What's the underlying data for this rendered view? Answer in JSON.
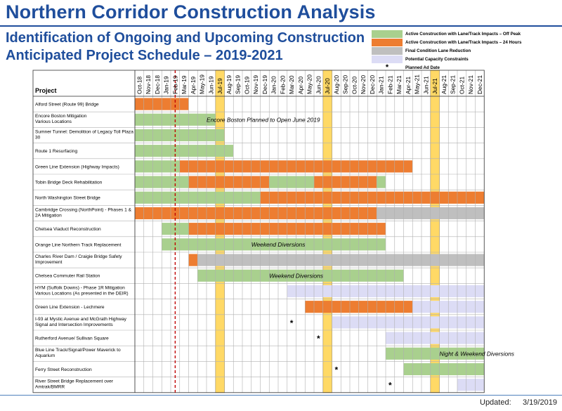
{
  "header": {
    "title": "Northern Corridor Construction Analysis",
    "subtitle_line1": "Identification of Ongoing and Upcoming Construction",
    "subtitle_line2": "Anticipated Project Schedule – 2019-2021"
  },
  "legend": [
    {
      "label": "Active Construction with Lane/Track Impacts – Off Peak",
      "color": "#a9d08e",
      "kind": "swatch"
    },
    {
      "label": "Active Construction with Lane/Track Impacts – 24 Hours",
      "color": "#ed7d31",
      "kind": "swatch"
    },
    {
      "label": "Final Condition Lane Reduction",
      "color": "#bfbfbf",
      "kind": "swatch"
    },
    {
      "label": "Potential Capacity Constraints",
      "color": "#dcdcf5",
      "kind": "swatch"
    },
    {
      "label": "Planned Ad Date",
      "color": "",
      "kind": "star"
    }
  ],
  "footer": {
    "updated_label": "Updated:",
    "updated_date": "3/19/2019"
  },
  "chart_data": {
    "type": "gantt",
    "title": "Anticipated Project Schedule – 2019-2021",
    "column_header": "Project",
    "months": [
      "Oct-18",
      "Nov-18",
      "Dec-18",
      "Jan-19",
      "Feb-19",
      "Mar-19",
      "Apr-19",
      "May-19",
      "Jun-19",
      "Jul-19",
      "Aug-19",
      "Sep-19",
      "Oct-19",
      "Nov-19",
      "Dec-19",
      "Jan-20",
      "Feb-20",
      "Mar-20",
      "Apr-20",
      "May-20",
      "Jun-20",
      "Jul-20",
      "Aug-20",
      "Sep-20",
      "Oct-20",
      "Nov-20",
      "Dec-20",
      "Jan-21",
      "Feb-21",
      "Mar-21",
      "Apr-21",
      "May-21",
      "Jun-21",
      "Jul-21",
      "Aug-21",
      "Sep-21",
      "Oct-21",
      "Nov-21",
      "Dec-21"
    ],
    "highlight_months": [
      "Jul-19",
      "Jul-20",
      "Jul-21"
    ],
    "today_line": "Feb-19",
    "colors": {
      "off_peak": "#a9d08e",
      "full_24h": "#ed7d31",
      "final": "#bfbfbf",
      "potential": "#dcdcf5",
      "highlight": "#ffd966",
      "today": "#c00000"
    },
    "projects": [
      {
        "name": "Alford Street (Route 99) Bridge",
        "bars": [
          [
            "full_24h",
            "Oct-18",
            "Mar-19"
          ]
        ]
      },
      {
        "name": "Encore Boston Mitigation\nVarious Locations",
        "bars": [
          [
            "off_peak",
            "Oct-18",
            "Jun-19"
          ]
        ],
        "note": {
          "text": "Encore Boston Planned to Open June 2019",
          "month": "Jun-19"
        }
      },
      {
        "name": "Sumner Tunnel: Demolition of Legacy Toll Plaza\n30",
        "bars": [
          [
            "off_peak",
            "Oct-18",
            "Jul-19"
          ]
        ]
      },
      {
        "name": "Route 1 Resurfacing",
        "bars": [
          [
            "off_peak",
            "Oct-18",
            "Aug-19"
          ]
        ]
      },
      {
        "name": "Green Line Extension (Highway Impacts)",
        "bars": [
          [
            "off_peak",
            "Oct-18",
            "Feb-19"
          ],
          [
            "full_24h",
            "Mar-19",
            "Apr-21"
          ]
        ]
      },
      {
        "name": "Tobin Bridge Deck Rehabilitation",
        "bars": [
          [
            "off_peak",
            "Oct-18",
            "Mar-19"
          ],
          [
            "full_24h",
            "Apr-19",
            "Dec-19"
          ],
          [
            "off_peak",
            "Jan-20",
            "May-20"
          ],
          [
            "full_24h",
            "Jun-20",
            "Dec-20"
          ],
          [
            "off_peak",
            "Jan-21",
            "Jan-21"
          ]
        ]
      },
      {
        "name": "North Washington Street Bridge",
        "bars": [
          [
            "off_peak",
            "Oct-18",
            "Nov-19"
          ],
          [
            "full_24h",
            "Dec-19",
            "Dec-21"
          ]
        ]
      },
      {
        "name": "Cambridge Crossing (NorthPoint) - Phases 1 &\n2A Mitigation",
        "bars": [
          [
            "full_24h",
            "Oct-18",
            "Dec-20"
          ],
          [
            "final",
            "Jan-21",
            "Dec-21"
          ]
        ]
      },
      {
        "name": "Chelsea Viaduct Reconstruction",
        "bars": [
          [
            "off_peak",
            "Jan-19",
            "Mar-19"
          ],
          [
            "full_24h",
            "Apr-19",
            "Jan-21"
          ]
        ]
      },
      {
        "name": "Orange Line Northern Track Replacement",
        "bars": [
          [
            "off_peak",
            "Jan-19",
            "Jan-21"
          ]
        ],
        "note": {
          "text": "Weekend Diversions",
          "month": "Nov-19"
        }
      },
      {
        "name": "Charles River Dam / Craigie Bridge Safety\nImprovement",
        "bars": [
          [
            "full_24h",
            "Apr-19",
            "Apr-19"
          ],
          [
            "final",
            "May-19",
            "Dec-21"
          ]
        ]
      },
      {
        "name": "Chelsea Commuter Rail Station",
        "bars": [
          [
            "off_peak",
            "May-19",
            "Mar-21"
          ]
        ],
        "note": {
          "text": "Weekend Diversions",
          "month": "Jan-20"
        }
      },
      {
        "name": "HYM (Suffolk Downs) - Phase 1R Mitigation\nVarious Locations (As presented in the DEIR)",
        "bars": [
          [
            "potential",
            "Mar-20",
            "Dec-21"
          ]
        ]
      },
      {
        "name": "Green Line Extension - Lechmere",
        "bars": [
          [
            "full_24h",
            "May-20",
            "Apr-21"
          ],
          [
            "potential",
            "May-21",
            "Dec-21"
          ]
        ]
      },
      {
        "name": "I-93 at Mystic Avenue and McGrath Highway\nSignal and Intersection Improvements",
        "bars": [
          [
            "potential",
            "Aug-20",
            "Dec-21"
          ]
        ],
        "star": "Mar-20"
      },
      {
        "name": "Rutherford Avenue/ Sullivan Square",
        "bars": [
          [
            "potential",
            "Feb-21",
            "Dec-21"
          ]
        ],
        "star": "Jun-20"
      },
      {
        "name": "Blue Line Track/Signal/Power Maverick to\nAquarium",
        "bars": [
          [
            "off_peak",
            "Feb-21",
            "Dec-21"
          ]
        ],
        "note": {
          "text": "Night & Weekend Diversions",
          "month": "Aug-21"
        }
      },
      {
        "name": "Ferry Street Reconstruction",
        "bars": [
          [
            "off_peak",
            "Apr-21",
            "Dec-21"
          ]
        ],
        "star": "Aug-20"
      },
      {
        "name": "River Street Bridge Replacement over\nAmtrak/BMRR",
        "bars": [
          [
            "potential",
            "Oct-21",
            "Dec-21"
          ]
        ],
        "star": "Feb-21"
      }
    ]
  }
}
